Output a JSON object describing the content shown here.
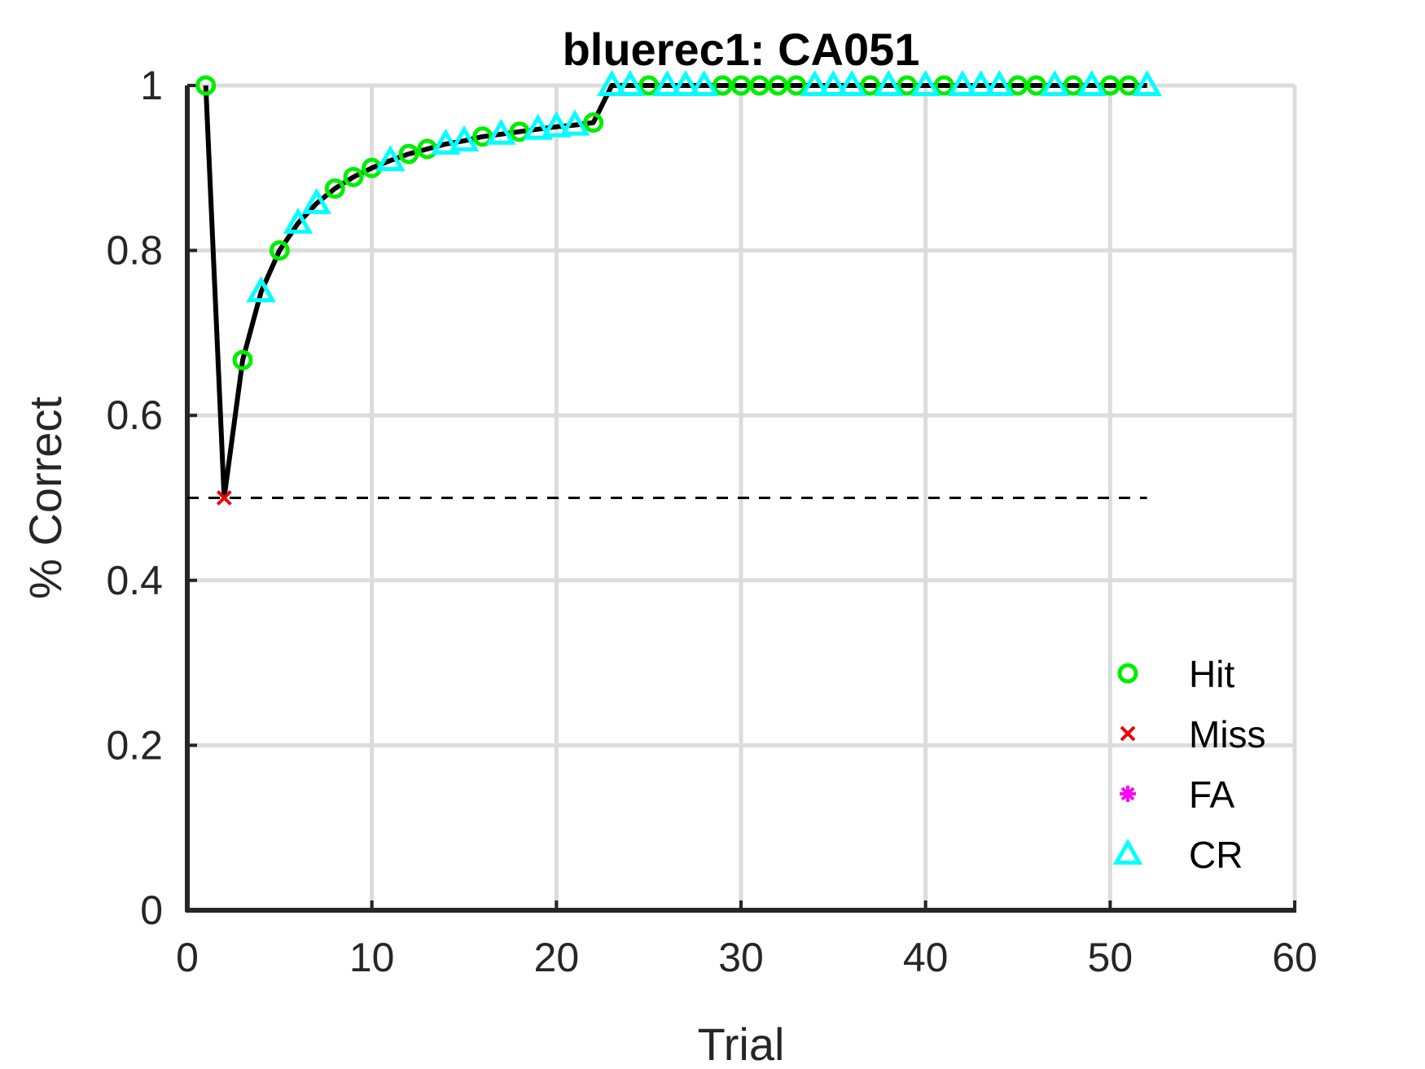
{
  "chart_data": {
    "type": "line",
    "title": "bluerec1: CA051",
    "xlabel": "Trial",
    "ylabel": "% Correct",
    "xlim": [
      0,
      60
    ],
    "ylim": [
      0,
      1
    ],
    "xticks": [
      0,
      10,
      20,
      30,
      40,
      50,
      60
    ],
    "yticks": [
      0,
      0.2,
      0.4,
      0.6,
      0.8,
      1
    ],
    "xtick_labels": [
      "0",
      "10",
      "20",
      "30",
      "40",
      "50",
      "60"
    ],
    "ytick_labels": [
      "0",
      "0.2",
      "0.4",
      "0.6",
      "0.8",
      "1"
    ],
    "grid": true,
    "chance_line": {
      "y": 0.5,
      "x_range": [
        0,
        52
      ],
      "style": "dashed",
      "color": "#000000"
    },
    "curve_color": "#000000",
    "series": [
      {
        "name": "Hit",
        "marker": "circle",
        "color": "#00ee00",
        "points": [
          [
            1,
            1.0
          ],
          [
            3,
            0.667
          ],
          [
            5,
            0.8
          ],
          [
            8,
            0.875
          ],
          [
            9,
            0.889
          ],
          [
            10,
            0.9
          ],
          [
            12,
            0.917
          ],
          [
            13,
            0.923
          ],
          [
            16,
            0.938
          ],
          [
            18,
            0.944
          ],
          [
            22,
            0.955
          ],
          [
            25,
            1
          ],
          [
            29,
            1
          ],
          [
            30,
            1
          ],
          [
            31,
            1
          ],
          [
            32,
            1
          ],
          [
            33,
            1
          ],
          [
            37,
            1
          ],
          [
            39,
            1
          ],
          [
            41,
            1
          ],
          [
            45,
            1
          ],
          [
            46,
            1
          ],
          [
            48,
            1
          ],
          [
            50,
            1
          ],
          [
            51,
            1
          ]
        ]
      },
      {
        "name": "Miss",
        "marker": "x",
        "color": "#ee0000",
        "points": [
          [
            2,
            0.5
          ]
        ]
      },
      {
        "name": "FA",
        "marker": "asterisk",
        "color": "#ff00ff",
        "points": []
      },
      {
        "name": "CR",
        "marker": "triangle",
        "color": "#00ffff",
        "points": [
          [
            4,
            0.75
          ],
          [
            6,
            0.833
          ],
          [
            7,
            0.857
          ],
          [
            11,
            0.909
          ],
          [
            14,
            0.929
          ],
          [
            15,
            0.933
          ],
          [
            17,
            0.941
          ],
          [
            19,
            0.947
          ],
          [
            20,
            0.95
          ],
          [
            21,
            0.952
          ],
          [
            23,
            1
          ],
          [
            24,
            1
          ],
          [
            26,
            1
          ],
          [
            27,
            1
          ],
          [
            28,
            1
          ],
          [
            34,
            1
          ],
          [
            35,
            1
          ],
          [
            36,
            1
          ],
          [
            38,
            1
          ],
          [
            40,
            1
          ],
          [
            42,
            1
          ],
          [
            43,
            1
          ],
          [
            44,
            1
          ],
          [
            47,
            1
          ],
          [
            49,
            1
          ],
          [
            52,
            1
          ]
        ]
      }
    ],
    "legend": {
      "position": "bottom-right",
      "entries": [
        {
          "label": "Hit",
          "marker": "circle",
          "color": "#00ee00"
        },
        {
          "label": "Miss",
          "marker": "x",
          "color": "#ee0000"
        },
        {
          "label": "FA",
          "marker": "asterisk",
          "color": "#ff00ff"
        },
        {
          "label": "CR",
          "marker": "triangle",
          "color": "#00ffff"
        }
      ]
    }
  }
}
